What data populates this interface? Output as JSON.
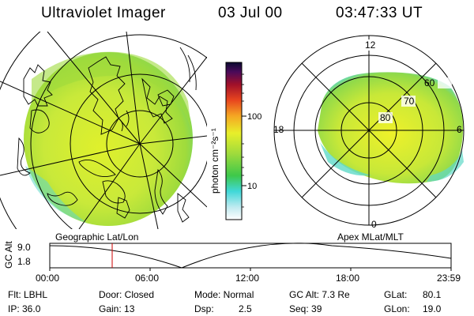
{
  "header": {
    "title": "Ultraviolet Imager",
    "date": "03 Jul 00",
    "time": "03:47:33 UT"
  },
  "colorbar": {
    "unit_label": "photon cm⁻²s⁻¹",
    "ticks": [
      "100",
      "10"
    ]
  },
  "polar_plot": {
    "mlt_labels": [
      "12",
      "18",
      "6",
      "0"
    ],
    "lat_labels": [
      "60",
      "70",
      "80"
    ]
  },
  "map_labels": {
    "left": "Geographic Lat/Lon",
    "right": "Apex MLat/MLT"
  },
  "altitude_plot": {
    "ylabel": "GC Alt",
    "yticks": [
      "9.0",
      "1.8"
    ],
    "xticks": [
      "00:00",
      "06:00",
      "12:00",
      "18:00",
      "23:59"
    ]
  },
  "info": {
    "filter": "Flt: LBHL",
    "ip": "IP: 36.0",
    "door": "Door: Closed",
    "gain": "Gain: 13",
    "mode": "Mode: Normal",
    "dsp_label": "Dsp:",
    "dsp_value": "2.5",
    "gc_alt": "GC Alt: 7.3 Re",
    "seq": "Seq: 39",
    "glat_label": "GLat:",
    "glat_value": "80.1",
    "glon_label": "GLon:",
    "glon_value": "19.0"
  },
  "colors": {
    "aurora_green": "#9fdb3c",
    "aurora_yellow": "#e8ef2a",
    "aurora_cyan": "#5fd9c8",
    "marker_red": "#cc0000"
  }
}
